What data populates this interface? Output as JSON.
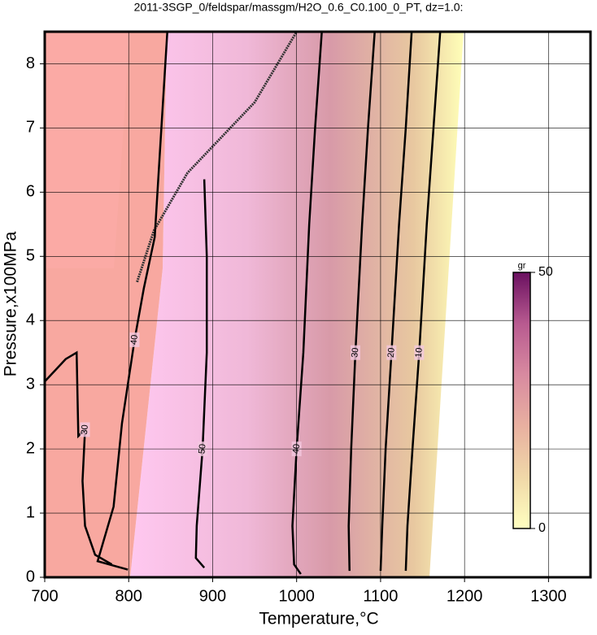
{
  "chart_data": {
    "type": "contour",
    "title": "2011-3SGP_0/feldspar/massgm/H2O_0.6_C0.100_0_PT, dz=1.0:",
    "x_label": "Temperature,°C",
    "y_label": "Pressure,x100MPa",
    "xlim": [
      700,
      1350
    ],
    "ylim": [
      0,
      8.5
    ],
    "xticks": [
      700,
      800,
      900,
      1000,
      1100,
      1200,
      1300
    ],
    "yticks": [
      0,
      1,
      2,
      3,
      4,
      5,
      6,
      7,
      8
    ],
    "grid": true,
    "contours": [
      {
        "level": 40,
        "x": [
          846,
          838,
          831,
          818,
          807,
          792,
          782,
          763,
          799
        ],
        "y": [
          8.5,
          6.8,
          5.3,
          4.5,
          3.7,
          2.4,
          1.1,
          0.25,
          0.12
        ]
      },
      {
        "level": 50,
        "x": [
          890,
          893,
          893,
          888,
          881,
          880,
          890
        ],
        "y": [
          6.2,
          5,
          3.5,
          2,
          0.8,
          0.3,
          0.15
        ]
      },
      {
        "level": 30,
        "x": [
          700,
          725,
          738,
          740,
          748,
          745,
          748,
          760,
          780
        ],
        "y": [
          3.05,
          3.4,
          3.5,
          2.2,
          2.3,
          1.5,
          0.8,
          0.35,
          0.2
        ]
      },
      {
        "level": 40,
        "x": [
          1030,
          1022,
          1015,
          1008,
          1000,
          995,
          997,
          1005
        ],
        "y": [
          8.5,
          7,
          5.5,
          3.5,
          2,
          0.8,
          0.2,
          0.05
        ]
      },
      {
        "level": 30,
        "x": [
          1093,
          1085,
          1078,
          1070,
          1065,
          1062,
          1063
        ],
        "y": [
          8.5,
          7,
          5.5,
          3.5,
          2,
          0.8,
          0.1
        ]
      },
      {
        "level": 20,
        "x": [
          1137,
          1130,
          1122,
          1113,
          1106,
          1102,
          1100
        ],
        "y": [
          8.5,
          7,
          5.5,
          3.5,
          2,
          0.8,
          0.1
        ]
      },
      {
        "level": 10,
        "x": [
          1171,
          1163,
          1155,
          1146,
          1138,
          1132,
          1130
        ],
        "y": [
          8.5,
          7,
          5.5,
          3.5,
          2,
          0.8,
          0.1
        ]
      }
    ],
    "boundary": {
      "x": [
        810,
        830,
        870,
        950,
        1000
      ],
      "y": [
        4.6,
        5.4,
        6.3,
        7.4,
        8.5
      ]
    },
    "colorbar": {
      "label": "gr",
      "clim": [
        0,
        50
      ],
      "cticks": [
        0,
        50
      ],
      "colors": [
        "#ffffc0",
        "#f0d8a8",
        "#e8b0a0",
        "#d88aa0",
        "#b85a90",
        "#6a1060"
      ]
    }
  }
}
